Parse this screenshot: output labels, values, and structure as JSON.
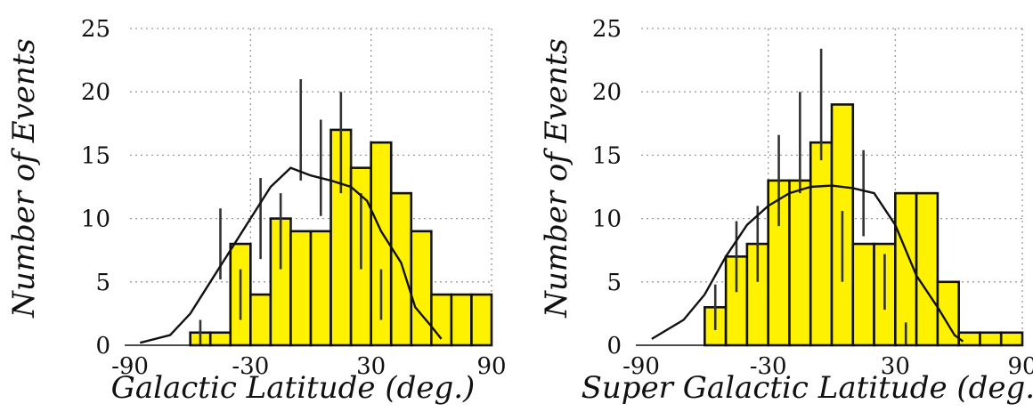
{
  "chart_data": [
    {
      "type": "bar",
      "xlabel": "Galactic Latitude (deg.)",
      "ylabel": "Number of Events",
      "xlim": [
        -90,
        90
      ],
      "ylim": [
        0,
        25
      ],
      "xticks": [
        "-90",
        "-30",
        "30",
        "90"
      ],
      "yticks": [
        "0",
        "5",
        "10",
        "15",
        "20",
        "25"
      ],
      "grid": true,
      "bin_edges": [
        -60,
        -50,
        -40,
        -30,
        -20,
        -10,
        0,
        10,
        20,
        30,
        40,
        50,
        60,
        70,
        80,
        90
      ],
      "values": [
        1,
        1,
        8,
        4,
        10,
        9,
        9,
        17,
        14,
        16,
        12,
        9,
        4,
        4,
        4
      ],
      "errors": [
        [
          -55,
          0,
          2
        ],
        [
          -45,
          5.2,
          10.8
        ],
        [
          -35,
          2,
          6
        ],
        [
          -25,
          6.8,
          13.2
        ],
        [
          -15,
          6,
          12
        ],
        [
          -5,
          13,
          21
        ],
        [
          5,
          10.2,
          17.8
        ],
        [
          15,
          12,
          20
        ],
        [
          25,
          6,
          12
        ],
        [
          35,
          2,
          6
        ]
      ],
      "curve": [
        [
          -85,
          0.2
        ],
        [
          -70,
          0.8
        ],
        [
          -60,
          2.5
        ],
        [
          -50,
          5
        ],
        [
          -40,
          7.5
        ],
        [
          -30,
          10
        ],
        [
          -20,
          12.5
        ],
        [
          -10,
          14
        ],
        [
          0,
          13.4
        ],
        [
          10,
          13
        ],
        [
          20,
          12.5
        ],
        [
          28,
          11.4
        ],
        [
          35,
          9
        ],
        [
          45,
          6.5
        ],
        [
          52,
          3
        ],
        [
          60,
          1.5
        ],
        [
          65,
          0.5
        ]
      ]
    },
    {
      "type": "bar",
      "xlabel": "Super Galactic Latitude (deg.)",
      "ylabel": "Number of Events",
      "xlim": [
        -90,
        90
      ],
      "ylim": [
        0,
        25
      ],
      "xticks": [
        "-90",
        "-30",
        "30",
        "90"
      ],
      "yticks": [
        "0",
        "5",
        "10",
        "15",
        "20",
        "25"
      ],
      "grid": true,
      "bin_edges": [
        -60,
        -50,
        -40,
        -30,
        -20,
        -10,
        0,
        10,
        20,
        30,
        40,
        50,
        60,
        70,
        80,
        90
      ],
      "values": [
        3,
        7,
        8,
        13,
        13,
        16,
        19,
        8,
        8,
        12,
        12,
        5,
        1,
        1,
        1
      ],
      "errors": [
        [
          -55,
          1.2,
          4.8
        ],
        [
          -45,
          4.2,
          9.8
        ],
        [
          -35,
          5,
          11
        ],
        [
          -25,
          9.4,
          16.6
        ],
        [
          -15,
          12,
          20
        ],
        [
          -5,
          14.6,
          23.4
        ],
        [
          5,
          5,
          10.6
        ],
        [
          15,
          8.6,
          15.4
        ],
        [
          25,
          2.8,
          7.2
        ],
        [
          35,
          0,
          1.8
        ]
      ],
      "curve": [
        [
          -85,
          0.5
        ],
        [
          -70,
          2
        ],
        [
          -60,
          4
        ],
        [
          -50,
          7
        ],
        [
          -40,
          9.5
        ],
        [
          -30,
          11
        ],
        [
          -20,
          12
        ],
        [
          -10,
          12.5
        ],
        [
          0,
          12.6
        ],
        [
          10,
          12.4
        ],
        [
          20,
          12
        ],
        [
          30,
          9.5
        ],
        [
          40,
          5.5
        ],
        [
          50,
          3
        ],
        [
          58,
          0.8
        ],
        [
          62,
          0.3
        ]
      ]
    }
  ]
}
